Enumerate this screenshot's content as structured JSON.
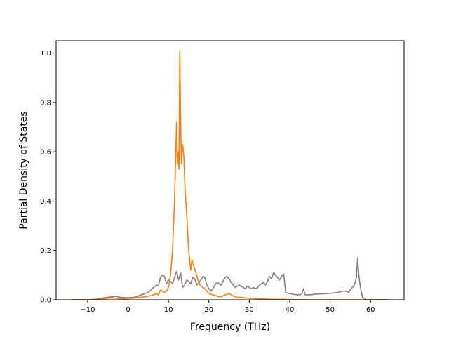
{
  "chart_data": {
    "type": "line",
    "title": "",
    "xlabel": "Frequency (THz)",
    "ylabel": "Partial Density of States",
    "xlim": [
      -17.8,
      68.3
    ],
    "ylim": [
      0,
      1.05
    ],
    "xticks": [
      -10,
      0,
      10,
      20,
      30,
      40,
      50,
      60
    ],
    "xtick_labels": [
      "−10",
      "0",
      "10",
      "20",
      "30",
      "40",
      "50",
      "60"
    ],
    "yticks": [
      0.0,
      0.2,
      0.4,
      0.6,
      0.8,
      1.0
    ],
    "ytick_labels": [
      "0.0",
      "0.2",
      "0.4",
      "0.6",
      "0.8",
      "1.0"
    ],
    "grid": false,
    "legend": "none",
    "series": [
      {
        "color": "#8c7a80",
        "points": [
          [
            -14,
            0.0
          ],
          [
            -10,
            0.0
          ],
          [
            -8,
            0.002
          ],
          [
            -7,
            0.005
          ],
          [
            -6,
            0.008
          ],
          [
            -5,
            0.01
          ],
          [
            -4,
            0.012
          ],
          [
            -3,
            0.014
          ],
          [
            -2,
            0.01
          ],
          [
            -1,
            0.009
          ],
          [
            0,
            0.008
          ],
          [
            1,
            0.009
          ],
          [
            2,
            0.012
          ],
          [
            3,
            0.018
          ],
          [
            4,
            0.025
          ],
          [
            5,
            0.03
          ],
          [
            6,
            0.045
          ],
          [
            7,
            0.06
          ],
          [
            7.5,
            0.055
          ],
          [
            8,
            0.09
          ],
          [
            8.5,
            0.1
          ],
          [
            9,
            0.095
          ],
          [
            9.5,
            0.065
          ],
          [
            10,
            0.08
          ],
          [
            10.5,
            0.075
          ],
          [
            11,
            0.065
          ],
          [
            11.5,
            0.09
          ],
          [
            12,
            0.115
          ],
          [
            12.5,
            0.08
          ],
          [
            13,
            0.11
          ],
          [
            13.5,
            0.05
          ],
          [
            14,
            0.06
          ],
          [
            14.5,
            0.08
          ],
          [
            15,
            0.075
          ],
          [
            15.5,
            0.065
          ],
          [
            16,
            0.09
          ],
          [
            16.5,
            0.085
          ],
          [
            17,
            0.06
          ],
          [
            17.5,
            0.07
          ],
          [
            18,
            0.08
          ],
          [
            18.5,
            0.095
          ],
          [
            19,
            0.09
          ],
          [
            19.5,
            0.06
          ],
          [
            20,
            0.045
          ],
          [
            20.5,
            0.035
          ],
          [
            21,
            0.045
          ],
          [
            21.5,
            0.06
          ],
          [
            22,
            0.07
          ],
          [
            22.5,
            0.065
          ],
          [
            23,
            0.06
          ],
          [
            23.5,
            0.075
          ],
          [
            24,
            0.09
          ],
          [
            24.5,
            0.095
          ],
          [
            25,
            0.085
          ],
          [
            25.5,
            0.07
          ],
          [
            26,
            0.06
          ],
          [
            26.5,
            0.05
          ],
          [
            27,
            0.055
          ],
          [
            27.5,
            0.06
          ],
          [
            28,
            0.055
          ],
          [
            28.5,
            0.05
          ],
          [
            29,
            0.045
          ],
          [
            29.5,
            0.055
          ],
          [
            30,
            0.05
          ],
          [
            30.5,
            0.045
          ],
          [
            31,
            0.05
          ],
          [
            31.5,
            0.045
          ],
          [
            32,
            0.048
          ],
          [
            32.5,
            0.06
          ],
          [
            33,
            0.065
          ],
          [
            33.5,
            0.07
          ],
          [
            34,
            0.06
          ],
          [
            34.5,
            0.075
          ],
          [
            35,
            0.095
          ],
          [
            35.5,
            0.085
          ],
          [
            36,
            0.11
          ],
          [
            36.5,
            0.1
          ],
          [
            37,
            0.09
          ],
          [
            37.5,
            0.08
          ],
          [
            38,
            0.095
          ],
          [
            38.5,
            0.105
          ],
          [
            39,
            0.03
          ],
          [
            40,
            0.025
          ],
          [
            41,
            0.022
          ],
          [
            42,
            0.02
          ],
          [
            42.5,
            0.02
          ],
          [
            43,
            0.025
          ],
          [
            43.4,
            0.045
          ],
          [
            43.8,
            0.02
          ],
          [
            45,
            0.02
          ],
          [
            46,
            0.022
          ],
          [
            47,
            0.024
          ],
          [
            48,
            0.024
          ],
          [
            49,
            0.025
          ],
          [
            50,
            0.026
          ],
          [
            51,
            0.028
          ],
          [
            52,
            0.03
          ],
          [
            53,
            0.035
          ],
          [
            54,
            0.035
          ],
          [
            54.5,
            0.03
          ],
          [
            55,
            0.04
          ],
          [
            55.5,
            0.05
          ],
          [
            56,
            0.06
          ],
          [
            56.5,
            0.09
          ],
          [
            56.8,
            0.17
          ],
          [
            57.1,
            0.1
          ],
          [
            57.5,
            0.05
          ],
          [
            58,
            0.01
          ],
          [
            59,
            0.0
          ],
          [
            62,
            0.0
          ],
          [
            64.5,
            0.0
          ]
        ]
      },
      {
        "color": "#ff7f0e",
        "points": [
          [
            -14,
            0.0
          ],
          [
            -10,
            0.0
          ],
          [
            -8,
            0.0
          ],
          [
            -7,
            0.002
          ],
          [
            -6,
            0.004
          ],
          [
            -5,
            0.006
          ],
          [
            -4,
            0.008
          ],
          [
            -3,
            0.006
          ],
          [
            -2,
            0.004
          ],
          [
            -1,
            0.004
          ],
          [
            0,
            0.004
          ],
          [
            1,
            0.006
          ],
          [
            2,
            0.008
          ],
          [
            3,
            0.01
          ],
          [
            4,
            0.012
          ],
          [
            5,
            0.015
          ],
          [
            6,
            0.018
          ],
          [
            7,
            0.025
          ],
          [
            7.5,
            0.02
          ],
          [
            8,
            0.04
          ],
          [
            8.5,
            0.035
          ],
          [
            9,
            0.03
          ],
          [
            9.5,
            0.035
          ],
          [
            10,
            0.05
          ],
          [
            10.5,
            0.1
          ],
          [
            11,
            0.2
          ],
          [
            11.5,
            0.4
          ],
          [
            12,
            0.72
          ],
          [
            12.2,
            0.55
          ],
          [
            12.4,
            0.6
          ],
          [
            12.6,
            0.53
          ],
          [
            12.8,
            1.01
          ],
          [
            13.0,
            0.75
          ],
          [
            13.2,
            0.55
          ],
          [
            13.5,
            0.63
          ],
          [
            13.8,
            0.58
          ],
          [
            14.1,
            0.45
          ],
          [
            14.5,
            0.35
          ],
          [
            15,
            0.2
          ],
          [
            15.5,
            0.12
          ],
          [
            15.8,
            0.16
          ],
          [
            16.2,
            0.14
          ],
          [
            16.8,
            0.11
          ],
          [
            17.3,
            0.08
          ],
          [
            17.8,
            0.06
          ],
          [
            18.5,
            0.05
          ],
          [
            19,
            0.045
          ],
          [
            19.5,
            0.035
          ],
          [
            20,
            0.025
          ],
          [
            21,
            0.02
          ],
          [
            22,
            0.015
          ],
          [
            23,
            0.012
          ],
          [
            24,
            0.02
          ],
          [
            25,
            0.025
          ],
          [
            26,
            0.015
          ],
          [
            27,
            0.01
          ],
          [
            28,
            0.01
          ],
          [
            30,
            0.006
          ],
          [
            32,
            0.004
          ],
          [
            34,
            0.003
          ],
          [
            36,
            0.002
          ],
          [
            38,
            0.002
          ],
          [
            40,
            0.001
          ],
          [
            45,
            0.0
          ],
          [
            50,
            0.0
          ],
          [
            55,
            0.0
          ],
          [
            60,
            0.0
          ],
          [
            64.5,
            0.0
          ]
        ]
      }
    ]
  }
}
